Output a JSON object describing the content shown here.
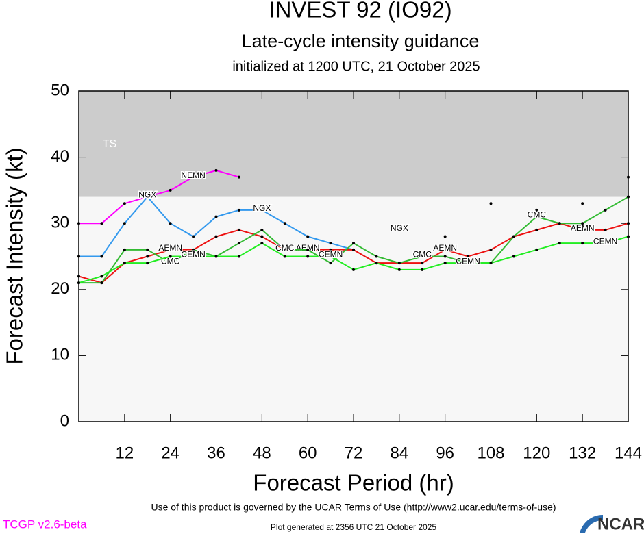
{
  "chart_data": {
    "type": "line",
    "title": "INVEST 92 (IO92)",
    "subtitle": "Late-cycle intensity guidance",
    "subtitle2": "initialized at 1200 UTC, 21 October 2025",
    "x_label": "Forecast Period (hr)",
    "y_label": "Forecast Intensity (kt)",
    "xlim": [
      0,
      144
    ],
    "xticks": [
      12,
      24,
      36,
      48,
      60,
      72,
      84,
      96,
      108,
      120,
      132,
      144
    ],
    "ylim": [
      0,
      50
    ],
    "yticks": [
      0,
      10,
      20,
      30,
      40,
      50
    ],
    "grid": false,
    "bands": [
      {
        "label": "TS",
        "from": 34,
        "to": 50,
        "color": "#cccccc"
      }
    ],
    "x": [
      0,
      6,
      12,
      18,
      24,
      30,
      36,
      42,
      48,
      54,
      60,
      66,
      72,
      78,
      84,
      90,
      96,
      102,
      108,
      114,
      120,
      126,
      132,
      138,
      144
    ],
    "series": [
      {
        "name": "NEMN",
        "color": "#ff00ff",
        "values": [
          30,
          30,
          33,
          34,
          35,
          37,
          38,
          37,
          null,
          null,
          null,
          null,
          null,
          null,
          null,
          null,
          null,
          null,
          null,
          null,
          null,
          null,
          null,
          null,
          null
        ]
      },
      {
        "name": "NGX",
        "color": "#3399ee",
        "values": [
          25,
          25,
          30,
          34,
          30,
          28,
          31,
          32,
          32,
          30,
          28,
          27,
          26,
          null,
          29,
          null,
          28,
          null,
          33,
          null,
          32,
          null,
          33,
          null,
          37
        ]
      },
      {
        "name": "AEMN",
        "color": "#ee1111",
        "values": [
          22,
          21,
          24,
          25,
          26,
          26,
          28,
          29,
          28,
          26,
          26,
          26,
          26,
          24,
          24,
          24,
          26,
          25,
          26,
          28,
          29,
          30,
          29,
          29,
          30
        ]
      },
      {
        "name": "CMC",
        "color": "#33bb33",
        "values": [
          21,
          21,
          26,
          26,
          24,
          26,
          25,
          27,
          29,
          26,
          26,
          24,
          27,
          25,
          24,
          25,
          25,
          24,
          24,
          28,
          31,
          30,
          30,
          32,
          34
        ]
      },
      {
        "name": "CEMN",
        "color": "#22ee22",
        "values": [
          21,
          22,
          24,
          24,
          25,
          25,
          25,
          25,
          27,
          25,
          25,
          25,
          23,
          24,
          23,
          23,
          24,
          24,
          24,
          25,
          26,
          27,
          27,
          27,
          28
        ]
      }
    ]
  },
  "footer": {
    "terms": "Use of this product is governed by the UCAR Terms of Use (http://www2.ucar.edu/terms-of-use)",
    "version": "TCGP v2.6-beta",
    "generated": "Plot generated at 2356 UTC   21 October 2025",
    "logo": "NCAR"
  }
}
